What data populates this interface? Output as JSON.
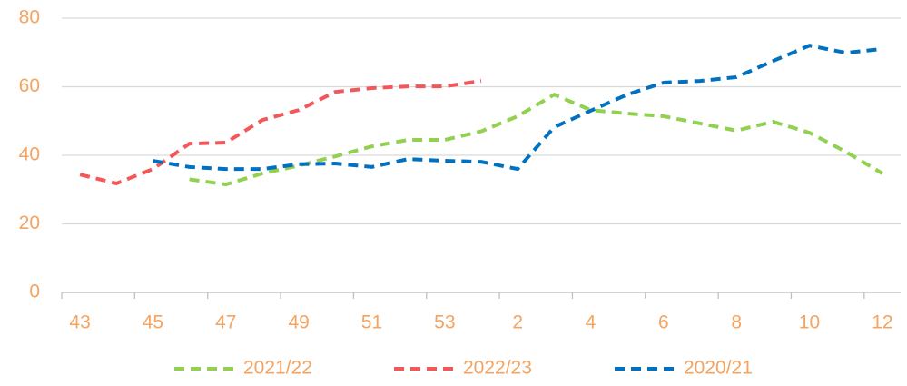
{
  "chart_data": {
    "type": "line",
    "categories": [
      43,
      null,
      45,
      null,
      47,
      null,
      49,
      null,
      51,
      null,
      53,
      null,
      2,
      null,
      4,
      null,
      6,
      null,
      8,
      null,
      10,
      null,
      12
    ],
    "series": [
      {
        "name": "2021/22",
        "color": "#92d050",
        "values": [
          null,
          null,
          null,
          33,
          31.5,
          34.7,
          37,
          39.7,
          42.6,
          44.5,
          44.5,
          47,
          51.4,
          57.7,
          53.2,
          52.2,
          51.4,
          49.3,
          47.2,
          49.8,
          46.6,
          41,
          34.7
        ]
      },
      {
        "name": "2022/23",
        "color": "#f4575a",
        "values": [
          34.4,
          31.8,
          36,
          43.4,
          43.7,
          50.3,
          53.2,
          58.5,
          59.6,
          60.1,
          60.1,
          61.7,
          null,
          null,
          null,
          null,
          null,
          null,
          null,
          null,
          null,
          null,
          null
        ]
      },
      {
        "name": "2020/21",
        "color": "#0070c0",
        "values": [
          null,
          null,
          38.4,
          36.6,
          36,
          36,
          37.4,
          37.6,
          36.6,
          38.9,
          38.4,
          38.1,
          36,
          48.2,
          53,
          57.7,
          61.2,
          61.7,
          62.8,
          67.5,
          72,
          69.9,
          71
        ]
      }
    ],
    "ylim": [
      0,
      80
    ],
    "yticks": [
      0,
      20,
      40,
      60,
      80
    ],
    "grid": true,
    "legend": "bottom"
  }
}
